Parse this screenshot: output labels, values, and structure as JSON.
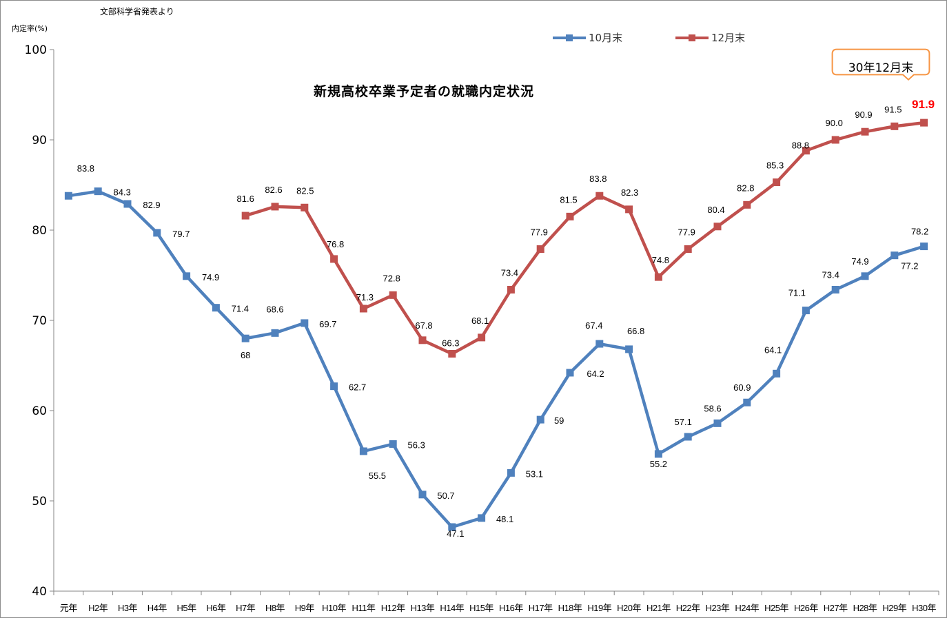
{
  "source_note": "文部科学省発表より",
  "y_axis_title": "内定率(%)",
  "title": "新規高校卒業予定者の就職内定状況",
  "callout_text": "30年12月末",
  "chart_data": {
    "type": "line",
    "title": "新規高校卒業予定者の就職内定状況",
    "ylabel": "内定率(%)",
    "ylim": [
      40,
      100
    ],
    "yticks": [
      40,
      50,
      60,
      70,
      80,
      90,
      100
    ],
    "grid": false,
    "legend_position": "top",
    "categories": [
      "元年",
      "H2年",
      "H3年",
      "H4年",
      "H5年",
      "H6年",
      "H7年",
      "H8年",
      "H9年",
      "H10年",
      "H11年",
      "H12年",
      "H13年",
      "H14年",
      "H15年",
      "H16年",
      "H17年",
      "H18年",
      "H19年",
      "H20年",
      "H21年",
      "H22年",
      "H23年",
      "H24年",
      "H25年",
      "H26年",
      "H27年",
      "H28年",
      "H29年",
      "H30年"
    ],
    "series": [
      {
        "name": "10月末",
        "color": "#4f81bd",
        "values": [
          83.8,
          84.3,
          82.9,
          79.7,
          74.9,
          71.4,
          68.0,
          68.6,
          69.7,
          62.7,
          55.5,
          56.3,
          50.7,
          47.1,
          48.1,
          53.1,
          59.0,
          64.2,
          67.4,
          66.8,
          55.2,
          57.1,
          58.6,
          60.9,
          64.1,
          71.1,
          73.4,
          74.9,
          77.2,
          78.2
        ],
        "labels": [
          "83.8",
          "84.3",
          "82.9",
          "79.7",
          "74.9",
          "71.4",
          "68",
          "68.6",
          "69.7",
          "62.7",
          "55.5",
          "56.3",
          "50.7",
          "47.1",
          "48.1",
          "53.1",
          "59",
          "64.2",
          "67.4",
          "66.8",
          "55.2",
          "57.1",
          "58.6",
          "60.9",
          "64.1",
          "71.1",
          "73.4",
          "74.9",
          "77.2",
          "78.2"
        ]
      },
      {
        "name": "12月末",
        "color": "#c0504d",
        "values": [
          null,
          null,
          null,
          null,
          null,
          null,
          81.6,
          82.6,
          82.5,
          76.8,
          71.3,
          72.8,
          67.8,
          66.3,
          68.1,
          73.4,
          77.9,
          81.5,
          83.8,
          82.3,
          74.8,
          77.9,
          80.4,
          82.8,
          85.3,
          88.8,
          90.0,
          90.9,
          91.5,
          91.9
        ],
        "labels": [
          null,
          null,
          null,
          null,
          null,
          null,
          "81.6",
          "82.6",
          "82.5",
          "76.8",
          "71.3",
          "72.8",
          "67.8",
          "66.3",
          "68.1",
          "73.4",
          "77.9",
          "81.5",
          "83.8",
          "82.3",
          "74.8",
          "77.9",
          "80.4",
          "82.8",
          "85.3",
          "88.8",
          "90.0",
          "90.9",
          "91.5",
          "91.9"
        ]
      }
    ],
    "highlight": {
      "series": "12月末",
      "category": "H30年",
      "color": "#ff0000"
    },
    "callout_color": "#f79646"
  }
}
